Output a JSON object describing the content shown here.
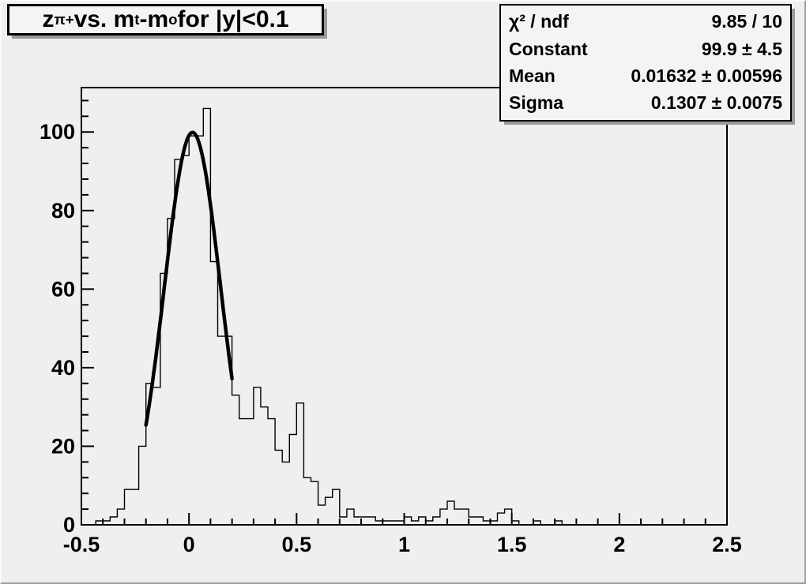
{
  "canvas": {
    "background": "#efefef",
    "foreground": "#000000"
  },
  "title_box": {
    "plain": "z_π+ vs. m_t-m_o for |y|<0.1",
    "segments": [
      {
        "text": "z"
      },
      {
        "text": "π+",
        "sub": true
      },
      {
        "text": " vs. m"
      },
      {
        "text": "t",
        "sub": true
      },
      {
        "text": "-m"
      },
      {
        "text": "o",
        "sub": true
      },
      {
        "text": " for |y|<0.1"
      }
    ]
  },
  "stats_box": {
    "rows": [
      {
        "label": "χ² / ndf",
        "value": "9.85 / 10"
      },
      {
        "label": "Constant",
        "value": "99.9 ± 4.5"
      },
      {
        "label": "Mean",
        "value": "0.01632 ± 0.00596"
      },
      {
        "label": "Sigma",
        "value": "0.1307 ± 0.0075"
      }
    ]
  },
  "chart_data": {
    "type": "bar",
    "subtype": "step-histogram",
    "title": "z_π+ vs. m_t-m_o for |y|<0.1",
    "xlabel": "",
    "ylabel": "",
    "xlim": [
      -0.5,
      2.5
    ],
    "ylim": [
      0,
      111.3
    ],
    "grid": false,
    "x_start": -0.5,
    "bin_width": 0.0333333,
    "bins": [
      0,
      0,
      1,
      1,
      2,
      4,
      9,
      9,
      20,
      36,
      35,
      64,
      78,
      93,
      94,
      99,
      99,
      106,
      67,
      48,
      48,
      33,
      27,
      27,
      35,
      30,
      27,
      19,
      16,
      23,
      31,
      12,
      11,
      5,
      7,
      9,
      2,
      4,
      2,
      2,
      2,
      1,
      1,
      1,
      1,
      2,
      1,
      2,
      1,
      2,
      4,
      6,
      4,
      4,
      2,
      2,
      1,
      1,
      3,
      4,
      1,
      0,
      0,
      1,
      0,
      0,
      1,
      0,
      0,
      0,
      0,
      0,
      0,
      0,
      0,
      0,
      0,
      0,
      0,
      0,
      0,
      0,
      0,
      0,
      0,
      0,
      0,
      0,
      0,
      0
    ],
    "x_major_ticks": [
      -0.5,
      0,
      0.5,
      1,
      1.5,
      2,
      2.5
    ],
    "x_tick_labels": [
      "-0.5",
      "0",
      "0.5",
      "1",
      "1.5",
      "2",
      "2.5"
    ],
    "x_minor_step": 0.1,
    "y_major_ticks": [
      0,
      20,
      40,
      60,
      80,
      100
    ],
    "y_tick_labels": [
      "0",
      "20",
      "40",
      "60",
      "80",
      "100"
    ],
    "y_minor_step": 4,
    "line_color": "#000000",
    "fit": {
      "shape": "gaussian",
      "constant": 99.9,
      "mean": 0.01632,
      "sigma": 0.1307,
      "range": [
        -0.2,
        0.2
      ],
      "color": "#000000"
    }
  }
}
